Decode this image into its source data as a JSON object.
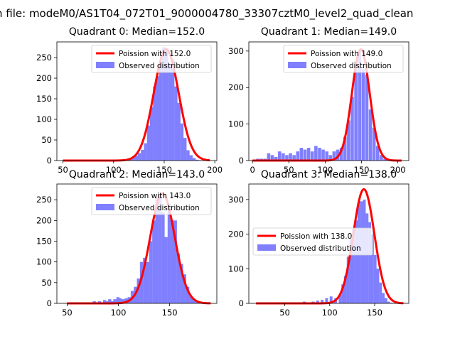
{
  "figure": {
    "suptitle": "n file: modeM0/AS1T04_072T01_9000004780_33307cztM0_level2_quad_clean"
  },
  "colors": {
    "hist": "#8080ff",
    "fit": "#ff0000",
    "axis": "#000000",
    "background": "#ffffff"
  },
  "chart_data": [
    {
      "type": "bar",
      "title": "Quadrant 0: Median=152.0",
      "legend": [
        "Poission with 152.0",
        "Observed distribution"
      ],
      "legend_position": "top-right",
      "xlim": [
        44,
        202
      ],
      "ylim": [
        0,
        288
      ],
      "xticks": [
        50,
        100,
        150,
        200
      ],
      "yticks": [
        0,
        50,
        100,
        150,
        200,
        250
      ],
      "bin_width": 3.1,
      "hist": [
        [
          80,
          1
        ],
        [
          90,
          1
        ],
        [
          100,
          1
        ],
        [
          105,
          1
        ],
        [
          110,
          2
        ],
        [
          115,
          5
        ],
        [
          118,
          8
        ],
        [
          121,
          12
        ],
        [
          124,
          18
        ],
        [
          127,
          26
        ],
        [
          130,
          42
        ],
        [
          133,
          85
        ],
        [
          136,
          130
        ],
        [
          139,
          180
        ],
        [
          142,
          205
        ],
        [
          145,
          240
        ],
        [
          148,
          275
        ],
        [
          151,
          272
        ],
        [
          154,
          235
        ],
        [
          157,
          245
        ],
        [
          160,
          180
        ],
        [
          163,
          140
        ],
        [
          166,
          90
        ],
        [
          169,
          55
        ],
        [
          172,
          25
        ],
        [
          175,
          13
        ],
        [
          178,
          6
        ],
        [
          181,
          2
        ],
        [
          184,
          1
        ]
      ],
      "poisson_lambda": 152.0,
      "fit_scale": 270,
      "fit_range": [
        50,
        195
      ]
    },
    {
      "type": "bar",
      "title": "Quadrant 1: Median=149.0",
      "legend": [
        "Poission with 149.0",
        "Observed distribution"
      ],
      "legend_position": "top-right",
      "xlim": [
        -5,
        215
      ],
      "ylim": [
        0,
        325
      ],
      "xticks": [
        0,
        50,
        100,
        150,
        200
      ],
      "yticks": [
        0,
        100,
        200,
        300
      ],
      "bin_width": 4.5,
      "hist": [
        [
          5,
          5
        ],
        [
          10,
          5
        ],
        [
          15,
          5
        ],
        [
          20,
          20
        ],
        [
          25,
          15
        ],
        [
          30,
          10
        ],
        [
          35,
          25
        ],
        [
          40,
          20
        ],
        [
          45,
          15
        ],
        [
          50,
          20
        ],
        [
          55,
          15
        ],
        [
          60,
          25
        ],
        [
          65,
          35
        ],
        [
          70,
          30
        ],
        [
          75,
          35
        ],
        [
          80,
          25
        ],
        [
          85,
          40
        ],
        [
          90,
          35
        ],
        [
          95,
          30
        ],
        [
          100,
          25
        ],
        [
          105,
          15
        ],
        [
          110,
          25
        ],
        [
          115,
          30
        ],
        [
          120,
          35
        ],
        [
          125,
          65
        ],
        [
          130,
          110
        ],
        [
          135,
          175
        ],
        [
          140,
          250
        ],
        [
          145,
          300
        ],
        [
          150,
          250
        ],
        [
          155,
          235
        ],
        [
          160,
          140
        ],
        [
          165,
          90
        ],
        [
          170,
          40
        ],
        [
          175,
          15
        ],
        [
          180,
          5
        ],
        [
          185,
          2
        ]
      ],
      "poisson_lambda": 149.0,
      "fit_scale": 305,
      "fit_range": [
        0,
        205
      ]
    },
    {
      "type": "bar",
      "title": "Quadrant 2: Median=143.0",
      "legend": [
        "Poission with 143.0",
        "Observed distribution"
      ],
      "legend_position": "top-right",
      "xlim": [
        40,
        196
      ],
      "ylim": [
        0,
        288
      ],
      "xticks": [
        50,
        100,
        150
      ],
      "yticks": [
        0,
        50,
        100,
        150,
        200,
        250
      ],
      "bin_width": 3.1,
      "hist": [
        [
          60,
          1
        ],
        [
          70,
          2
        ],
        [
          75,
          5
        ],
        [
          80,
          5
        ],
        [
          85,
          8
        ],
        [
          88,
          5
        ],
        [
          90,
          10
        ],
        [
          93,
          5
        ],
        [
          95,
          10
        ],
        [
          98,
          15
        ],
        [
          100,
          12
        ],
        [
          103,
          10
        ],
        [
          106,
          12
        ],
        [
          109,
          15
        ],
        [
          112,
          30
        ],
        [
          115,
          40
        ],
        [
          118,
          60
        ],
        [
          121,
          100
        ],
        [
          124,
          110
        ],
        [
          127,
          100
        ],
        [
          130,
          150
        ],
        [
          133,
          200
        ],
        [
          136,
          255
        ],
        [
          139,
          265
        ],
        [
          142,
          220
        ],
        [
          145,
          160
        ],
        [
          148,
          240
        ],
        [
          151,
          200
        ],
        [
          154,
          200
        ],
        [
          157,
          120
        ],
        [
          160,
          95
        ],
        [
          163,
          70
        ],
        [
          166,
          40
        ],
        [
          169,
          18
        ],
        [
          172,
          10
        ],
        [
          175,
          5
        ],
        [
          178,
          2
        ]
      ],
      "poisson_lambda": 143.0,
      "fit_scale": 265,
      "fit_range": [
        50,
        190
      ]
    },
    {
      "type": "bar",
      "title": "Quadrant 3: Median=138.0",
      "legend": [
        "Poission with 138.0",
        "Observed distribution"
      ],
      "legend_position": "center-left",
      "xlim": [
        10,
        188
      ],
      "ylim": [
        0,
        345
      ],
      "xticks": [
        50,
        100,
        150
      ],
      "yticks": [
        0,
        100,
        200,
        300
      ],
      "bin_width": 3.1,
      "hist": [
        [
          60,
          2
        ],
        [
          70,
          5
        ],
        [
          80,
          5
        ],
        [
          85,
          8
        ],
        [
          90,
          10
        ],
        [
          95,
          15
        ],
        [
          100,
          20
        ],
        [
          105,
          15
        ],
        [
          110,
          25
        ],
        [
          113,
          55
        ],
        [
          116,
          80
        ],
        [
          119,
          135
        ],
        [
          122,
          185
        ],
        [
          125,
          215
        ],
        [
          128,
          240
        ],
        [
          131,
          295
        ],
        [
          134,
          295
        ],
        [
          137,
          300
        ],
        [
          140,
          260
        ],
        [
          143,
          235
        ],
        [
          146,
          200
        ],
        [
          149,
          140
        ],
        [
          152,
          100
        ],
        [
          155,
          60
        ],
        [
          158,
          30
        ],
        [
          161,
          15
        ],
        [
          164,
          5
        ],
        [
          167,
          2
        ]
      ],
      "poisson_lambda": 138.0,
      "fit_scale": 330,
      "fit_range": [
        18,
        182
      ]
    }
  ]
}
